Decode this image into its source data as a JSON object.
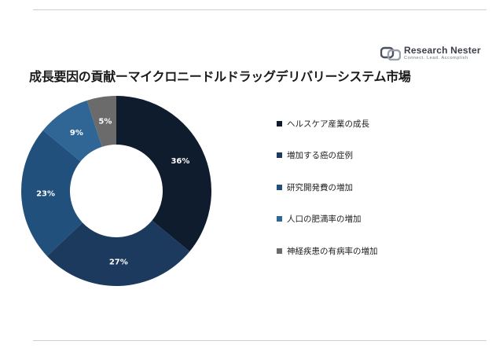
{
  "title": "成長要因の貢献ーマイクロニードルドラッグデリバリーシステム市場",
  "logo": {
    "name": "Research Nester",
    "tagline": "Connect. Lead. Accomplish",
    "icon": "research-nester-logo-icon"
  },
  "colors": {
    "background": "#ffffff",
    "label": "#ffffff"
  },
  "chart_data": {
    "type": "donut",
    "title": "",
    "value_suffix": "%",
    "start_angle_deg": 0,
    "direction": "clockwise",
    "legend_position": "right",
    "slices": [
      {
        "label": "ヘルスケア産業の成長",
        "value": 36,
        "color": "#0f1c2e"
      },
      {
        "label": "増加する癌の症例",
        "value": 27,
        "color": "#1b3a5e"
      },
      {
        "label": "研究開発費の増加",
        "value": 23,
        "color": "#22507d"
      },
      {
        "label": "人口の肥満率の増加",
        "value": 9,
        "color": "#2f6696"
      },
      {
        "label": "神経疾患の有病率の増加",
        "value": 5,
        "color": "#6b6b6b"
      }
    ]
  }
}
